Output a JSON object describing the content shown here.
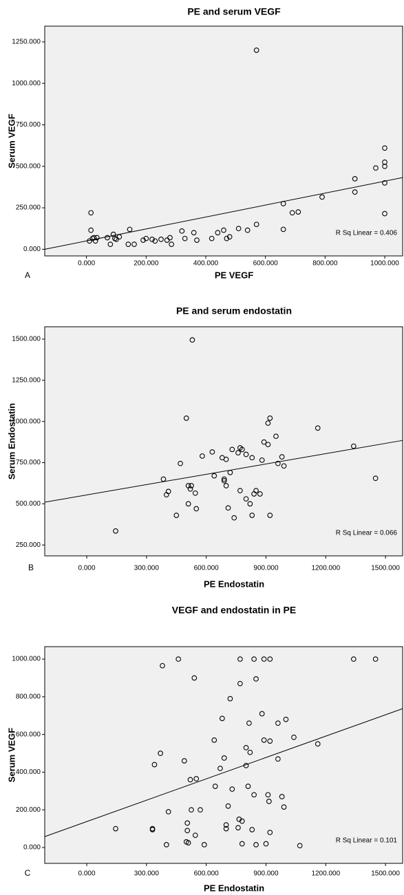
{
  "chart_data": [
    {
      "type": "scatter",
      "panel": "A",
      "title": "PE and serum VEGF",
      "x_label": "PE VEGF",
      "y_label": "Serum VEGF",
      "annotation": "R Sq Linear = 0.406",
      "x": [
        10,
        15,
        15,
        20,
        25,
        30,
        35,
        70,
        80,
        90,
        95,
        100,
        110,
        140,
        145,
        160,
        190,
        200,
        220,
        230,
        250,
        270,
        280,
        285,
        320,
        330,
        360,
        370,
        420,
        440,
        460,
        470,
        480,
        510,
        540,
        570,
        570,
        660,
        660,
        690,
        710,
        790,
        900,
        900,
        970,
        1000,
        1000,
        1000,
        1000,
        1000
      ],
      "values": [
        50,
        115,
        220,
        65,
        70,
        50,
        70,
        70,
        30,
        90,
        65,
        60,
        75,
        30,
        120,
        30,
        55,
        65,
        60,
        50,
        60,
        55,
        70,
        30,
        110,
        65,
        100,
        55,
        65,
        100,
        115,
        65,
        75,
        125,
        115,
        150,
        1200,
        275,
        120,
        220,
        225,
        315,
        345,
        425,
        490,
        500,
        525,
        610,
        400,
        215
      ],
      "fit_line": {
        "x": [
          -140,
          1060
        ],
        "y": [
          0,
          432
        ]
      },
      "xlim": [
        -140,
        1060
      ],
      "ylim": [
        -40,
        1345
      ],
      "xticks": [
        {
          "value": 0,
          "label": "0.000"
        },
        {
          "value": 200,
          "label": "200.000"
        },
        {
          "value": 400,
          "label": "400.000"
        },
        {
          "value": 600,
          "label": "600.000"
        },
        {
          "value": 800,
          "label": "800.000"
        },
        {
          "value": 1000,
          "label": "1000.000"
        }
      ],
      "yticks": [
        {
          "value": 0,
          "label": "0.000"
        },
        {
          "value": 250,
          "label": "250.000"
        },
        {
          "value": 500,
          "label": "500.000"
        },
        {
          "value": 750,
          "label": "750.000"
        },
        {
          "value": 1000,
          "label": "1000.000"
        },
        {
          "value": 1250,
          "label": "1250.000"
        }
      ]
    },
    {
      "type": "scatter",
      "panel": "B",
      "title": "PE and serum endostatin",
      "x_label": "PE Endostatin",
      "y_label": "Serum Endostatin",
      "annotation": "R Sq Linear = 0.066",
      "x": [
        145,
        385,
        400,
        410,
        450,
        470,
        500,
        510,
        510,
        520,
        525,
        530,
        545,
        550,
        580,
        630,
        640,
        680,
        690,
        690,
        700,
        700,
        710,
        720,
        730,
        740,
        760,
        770,
        770,
        780,
        800,
        800,
        820,
        830,
        830,
        840,
        850,
        870,
        880,
        890,
        910,
        910,
        920,
        920,
        950,
        960,
        980,
        990,
        1160,
        1340,
        1450
      ],
      "values": [
        335,
        650,
        555,
        575,
        430,
        745,
        1020,
        610,
        500,
        590,
        610,
        1495,
        565,
        470,
        790,
        815,
        670,
        780,
        650,
        640,
        610,
        770,
        475,
        690,
        830,
        415,
        810,
        580,
        840,
        830,
        800,
        530,
        500,
        430,
        780,
        560,
        580,
        560,
        765,
        875,
        860,
        990,
        1020,
        430,
        910,
        745,
        785,
        730,
        960,
        850,
        655
      ],
      "fit_line": {
        "x": [
          -211,
          1586
        ],
        "y": [
          510,
          885
        ]
      },
      "xlim": [
        -211,
        1586
      ],
      "ylim": [
        184,
        1575
      ],
      "xticks": [
        {
          "value": 0,
          "label": "0.000"
        },
        {
          "value": 300,
          "label": "300.000"
        },
        {
          "value": 600,
          "label": "600.000"
        },
        {
          "value": 900,
          "label": "900.000"
        },
        {
          "value": 1200,
          "label": "1200.000"
        },
        {
          "value": 1500,
          "label": "1500.000"
        }
      ],
      "yticks": [
        {
          "value": 250,
          "label": "250.000"
        },
        {
          "value": 500,
          "label": "500.000"
        },
        {
          "value": 750,
          "label": "750.000"
        },
        {
          "value": 1000,
          "label": "1000.000"
        },
        {
          "value": 1250,
          "label": "1250.000"
        },
        {
          "value": 1500,
          "label": "1500.000"
        }
      ]
    },
    {
      "type": "scatter",
      "panel": "C",
      "title": "VEGF and endostatin in PE",
      "x_label": "PE Endostatin",
      "y_label": "Serum VEGF",
      "annotation": "R Sq Linear = 0.101",
      "x": [
        145,
        330,
        330,
        340,
        370,
        380,
        400,
        410,
        460,
        490,
        500,
        505,
        505,
        510,
        520,
        525,
        540,
        545,
        550,
        570,
        590,
        640,
        645,
        670,
        680,
        690,
        700,
        700,
        710,
        720,
        730,
        760,
        765,
        770,
        770,
        780,
        780,
        800,
        800,
        810,
        815,
        820,
        830,
        840,
        840,
        850,
        850,
        880,
        890,
        890,
        900,
        910,
        915,
        920,
        920,
        920,
        960,
        960,
        980,
        990,
        1000,
        1040,
        1070,
        1160,
        1340,
        1450
      ],
      "values": [
        100,
        100,
        95,
        440,
        500,
        965,
        15,
        190,
        1000,
        460,
        30,
        130,
        90,
        25,
        360,
        200,
        900,
        65,
        365,
        200,
        15,
        570,
        325,
        420,
        685,
        475,
        120,
        100,
        220,
        790,
        310,
        105,
        150,
        870,
        1000,
        140,
        20,
        530,
        435,
        325,
        660,
        505,
        95,
        1000,
        280,
        15,
        895,
        710,
        1000,
        570,
        20,
        280,
        245,
        565,
        80,
        1000,
        470,
        660,
        270,
        215,
        680,
        585,
        10,
        550,
        1000,
        1000
      ],
      "fit_line": {
        "x": [
          -211,
          1586
        ],
        "y": [
          58,
          737
        ]
      },
      "xlim": [
        -211,
        1586
      ],
      "ylim": [
        -84,
        1066
      ],
      "xticks": [
        {
          "value": 0,
          "label": "0.000"
        },
        {
          "value": 300,
          "label": "300.000"
        },
        {
          "value": 600,
          "label": "600.000"
        },
        {
          "value": 900,
          "label": "900.000"
        },
        {
          "value": 1200,
          "label": "1200.000"
        },
        {
          "value": 1500,
          "label": "1500.000"
        }
      ],
      "yticks": [
        {
          "value": 0,
          "label": "0.000"
        },
        {
          "value": 200,
          "label": "200.000"
        },
        {
          "value": 400,
          "label": "400.000"
        },
        {
          "value": 600,
          "label": "600.000"
        },
        {
          "value": 800,
          "label": "800.000"
        },
        {
          "value": 1000,
          "label": "1000.000"
        }
      ]
    }
  ]
}
